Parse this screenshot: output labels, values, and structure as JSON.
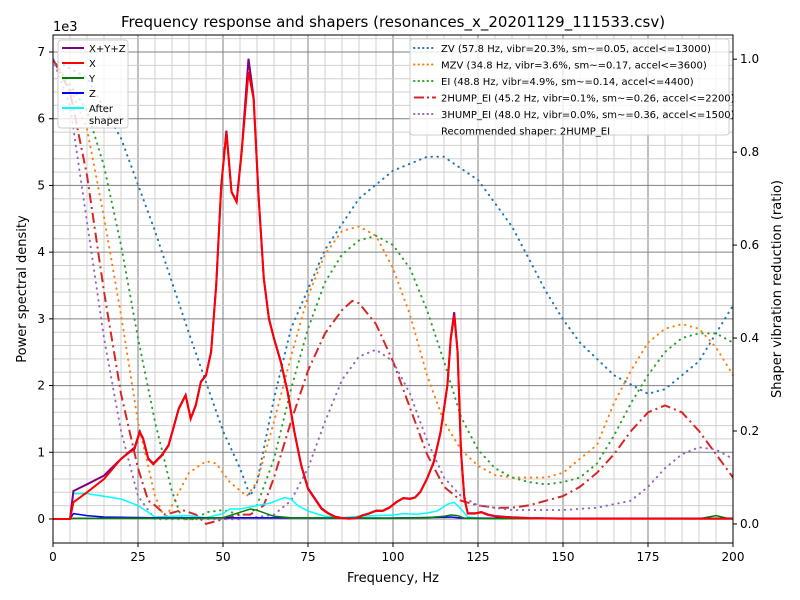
{
  "chart_data": {
    "type": "line",
    "title": "Frequency response and shapers (resonances_x_20201129_111533.csv)",
    "xlabel": "Frequency, Hz",
    "ylabel": "Power spectral density",
    "y2label": "Shaper vibration reduction (ratio)",
    "y_offset_label": "1e3",
    "xlim": [
      0,
      200
    ],
    "ylim": [
      -360,
      7255
    ],
    "y2lim": [
      -0.041,
      1.052
    ],
    "xticks": [
      0,
      25,
      50,
      75,
      100,
      125,
      150,
      175,
      200
    ],
    "yticks": [
      0,
      1,
      2,
      3,
      4,
      5,
      6,
      7
    ],
    "y2ticks": [
      "0.0",
      "0.2",
      "0.4",
      "0.6",
      "0.8",
      "1.0"
    ],
    "grid": true,
    "psd_legend_placement": "upper-left",
    "shaper_legend_placement": "upper-right",
    "psd_series": [
      {
        "name": "X+Y+Z",
        "color": "#800080",
        "x": [
          0,
          5,
          6,
          10,
          15,
          20,
          22.5,
          24,
          25.5,
          26.5,
          28,
          29.5,
          32,
          34,
          37,
          39,
          40.5,
          42,
          43.5,
          45,
          46.5,
          48,
          49.5,
          51,
          52.5,
          54,
          55.5,
          57.5,
          59,
          60.5,
          62,
          63.5,
          65,
          67,
          69,
          71,
          73,
          75,
          77,
          79,
          81,
          83,
          85,
          87,
          89,
          91,
          93,
          95,
          97,
          99,
          101,
          103,
          105,
          106.5,
          108,
          110,
          112,
          114,
          116,
          117,
          118,
          119,
          120,
          121,
          122,
          124,
          126,
          128,
          130,
          135,
          140,
          150,
          200
        ],
        "y": [
          0,
          0,
          420,
          520,
          650,
          900,
          1010,
          1070,
          1310,
          1210,
          910,
          830,
          960,
          1110,
          1660,
          1860,
          1510,
          1710,
          2060,
          2160,
          2510,
          3510,
          5010,
          5820,
          4910,
          4760,
          5520,
          6900,
          6320,
          4810,
          3610,
          3010,
          2710,
          2360,
          1910,
          1310,
          810,
          460,
          310,
          160,
          85,
          35,
          15,
          8,
          12,
          55,
          85,
          125,
          125,
          175,
          255,
          315,
          305,
          325,
          405,
          605,
          860,
          1310,
          2010,
          2720,
          3100,
          2510,
          1010,
          310,
          85,
          85,
          105,
          65,
          45,
          25,
          15,
          8,
          8
        ]
      },
      {
        "name": "X",
        "color": "#ff0000",
        "x": [
          0,
          5,
          6,
          10,
          15,
          20,
          22.5,
          24,
          25.5,
          26.5,
          28,
          29.5,
          32,
          34,
          37,
          39,
          40.5,
          42,
          43.5,
          45,
          46.5,
          48,
          49.5,
          51,
          52.5,
          54,
          55.5,
          57.5,
          59,
          60.5,
          62,
          63.5,
          65,
          67,
          69,
          71,
          73,
          75,
          77,
          79,
          81,
          83,
          85,
          87,
          89,
          91,
          93,
          95,
          97,
          99,
          101,
          103,
          105,
          106.5,
          108,
          110,
          112,
          114,
          116,
          117,
          118,
          119,
          120,
          121,
          122,
          124,
          126,
          128,
          130,
          135,
          140,
          150,
          200
        ],
        "y": [
          0,
          0,
          250,
          400,
          600,
          900,
          1000,
          1050,
          1300,
          1200,
          900,
          820,
          950,
          1100,
          1650,
          1850,
          1500,
          1700,
          2050,
          2150,
          2500,
          3500,
          5000,
          5800,
          4900,
          4750,
          5500,
          6700,
          6300,
          4800,
          3600,
          3000,
          2700,
          2350,
          1900,
          1300,
          800,
          450,
          300,
          150,
          80,
          30,
          10,
          5,
          10,
          50,
          80,
          120,
          120,
          170,
          250,
          310,
          300,
          320,
          400,
          600,
          850,
          1300,
          2000,
          2700,
          3050,
          2500,
          1000,
          300,
          80,
          80,
          100,
          60,
          40,
          20,
          10,
          5,
          5
        ]
      },
      {
        "name": "Y",
        "color": "#008000",
        "x": [
          0,
          5,
          6,
          20,
          40,
          50,
          55,
          58,
          60,
          65,
          70,
          100,
          110,
          115,
          117,
          119,
          121,
          130,
          190,
          195,
          198,
          200
        ],
        "y": [
          0,
          0,
          10,
          10,
          10,
          20,
          100,
          150,
          130,
          40,
          20,
          10,
          20,
          40,
          60,
          50,
          10,
          5,
          5,
          50,
          15,
          10
        ]
      },
      {
        "name": "Z",
        "color": "#0000ff",
        "x": [
          0,
          5,
          6,
          10,
          15,
          20,
          30,
          50,
          80,
          100,
          115,
          117,
          120,
          130,
          200
        ],
        "y": [
          0,
          0,
          80,
          50,
          30,
          25,
          20,
          20,
          15,
          15,
          25,
          30,
          15,
          10,
          10
        ]
      },
      {
        "name": "After\nshaper",
        "color": "#00ffff",
        "x": [
          0,
          5,
          6,
          10,
          15,
          20,
          25,
          28,
          30,
          35,
          40,
          45,
          50,
          52,
          55,
          60,
          64,
          68,
          70,
          72,
          75,
          80,
          85,
          90,
          95,
          100,
          103,
          107,
          110,
          113,
          116,
          118,
          120,
          122,
          125,
          200
        ],
        "y": [
          0,
          0,
          380,
          380,
          340,
          300,
          200,
          100,
          30,
          40,
          50,
          20,
          80,
          150,
          150,
          200,
          240,
          320,
          300,
          200,
          120,
          40,
          20,
          40,
          50,
          60,
          80,
          70,
          90,
          120,
          220,
          250,
          150,
          30,
          10,
          0
        ]
      }
    ],
    "shaper_series": [
      {
        "name": "ZV (57.8 Hz, vibr=20.3%, sm~=0.05, accel<=13000)",
        "color": "#1f77b4",
        "style": "dotted",
        "x": [
          0,
          10,
          20,
          30,
          40,
          50,
          55,
          58,
          60,
          65,
          70,
          80,
          90,
          100,
          110,
          115,
          125,
          135,
          145,
          150,
          155,
          165,
          175,
          180,
          190,
          200
        ],
        "y": [
          1.0,
          0.96,
          0.83,
          0.63,
          0.41,
          0.2,
          0.12,
          0.06,
          0.09,
          0.27,
          0.42,
          0.59,
          0.7,
          0.76,
          0.79,
          0.79,
          0.74,
          0.64,
          0.5,
          0.44,
          0.39,
          0.32,
          0.28,
          0.29,
          0.35,
          0.47
        ]
      },
      {
        "name": "MZV (34.8 Hz, vibr=3.6%, sm~=0.17, accel<=3600)",
        "color": "#ff7f0e",
        "style": "dotted",
        "x": [
          0,
          5,
          10,
          15,
          20,
          25,
          30,
          33,
          35,
          40,
          45,
          48,
          52,
          57,
          60,
          65,
          70,
          75,
          80,
          85,
          90,
          95,
          100,
          105,
          110,
          115,
          120,
          125,
          130,
          135,
          145,
          150,
          160,
          165,
          170,
          175,
          180,
          185,
          190,
          195,
          200
        ],
        "y": [
          1.0,
          0.94,
          0.85,
          0.66,
          0.45,
          0.22,
          0.06,
          0.01,
          0.04,
          0.11,
          0.135,
          0.13,
          0.09,
          0.06,
          0.09,
          0.22,
          0.36,
          0.49,
          0.58,
          0.63,
          0.64,
          0.62,
          0.55,
          0.45,
          0.32,
          0.22,
          0.16,
          0.125,
          0.105,
          0.1,
          0.1,
          0.11,
          0.17,
          0.26,
          0.33,
          0.39,
          0.42,
          0.43,
          0.42,
          0.38,
          0.32
        ]
      },
      {
        "name": "EI (48.8 Hz, vibr=4.9%, sm~=0.14, accel<=4400)",
        "color": "#2ca02c",
        "style": "dotted",
        "x": [
          0,
          10,
          15,
          20,
          25,
          30,
          35,
          38,
          42,
          45,
          50,
          55,
          58,
          60,
          65,
          70,
          75,
          80,
          85,
          90,
          95,
          100,
          105,
          110,
          115,
          120,
          125,
          130,
          135,
          140,
          145,
          150,
          155,
          160,
          165,
          170,
          175,
          180,
          185,
          190,
          195,
          200
        ],
        "y": [
          1.0,
          0.89,
          0.77,
          0.6,
          0.4,
          0.22,
          0.07,
          0.01,
          0.01,
          0.025,
          0.03,
          0.02,
          0.02,
          0.04,
          0.14,
          0.29,
          0.42,
          0.52,
          0.58,
          0.61,
          0.62,
          0.6,
          0.55,
          0.46,
          0.35,
          0.23,
          0.16,
          0.12,
          0.1,
          0.09,
          0.085,
          0.09,
          0.1,
          0.13,
          0.19,
          0.26,
          0.32,
          0.37,
          0.4,
          0.41,
          0.41,
          0.39
        ]
      },
      {
        "name": "2HUMP_EI (45.2 Hz, vibr=0.1%, sm~=0.26, accel<=2200)",
        "color": "#d62728",
        "style": "dashdot",
        "x": [
          0,
          5,
          10,
          15,
          20,
          25,
          28,
          30,
          33,
          38,
          42,
          45,
          50,
          55,
          58,
          62,
          65,
          70,
          75,
          80,
          85,
          88,
          90,
          95,
          100,
          105,
          110,
          115,
          120,
          125,
          130,
          135,
          140,
          145,
          150,
          155,
          160,
          165,
          170,
          175,
          180,
          185,
          190,
          195,
          200
        ],
        "y": [
          1.0,
          0.93,
          0.75,
          0.5,
          0.28,
          0.12,
          0.05,
          0.04,
          0.02,
          0.03,
          0.02,
          0.0,
          0.01,
          0.02,
          0.02,
          0.04,
          0.1,
          0.22,
          0.33,
          0.41,
          0.46,
          0.48,
          0.475,
          0.43,
          0.35,
          0.25,
          0.15,
          0.08,
          0.05,
          0.04,
          0.035,
          0.035,
          0.04,
          0.05,
          0.06,
          0.08,
          0.11,
          0.15,
          0.2,
          0.24,
          0.255,
          0.24,
          0.2,
          0.15,
          0.1
        ]
      },
      {
        "name": "3HUMP_EI (48.0 Hz, vibr=0.0%, sm~=0.36, accel<=1500)",
        "color": "#9467bd",
        "style": "dotted",
        "x": [
          0,
          5,
          10,
          15,
          20,
          25,
          30,
          35,
          45,
          55,
          60,
          65,
          70,
          75,
          80,
          85,
          90,
          95,
          100,
          105,
          110,
          115,
          120,
          125,
          135,
          150,
          160,
          170,
          175,
          180,
          185,
          190,
          195,
          200
        ],
        "y": [
          1.0,
          0.9,
          0.65,
          0.4,
          0.2,
          0.06,
          0.01,
          0.01,
          0.01,
          0.01,
          0.015,
          0.02,
          0.05,
          0.12,
          0.22,
          0.31,
          0.36,
          0.375,
          0.35,
          0.28,
          0.18,
          0.1,
          0.06,
          0.04,
          0.03,
          0.03,
          0.035,
          0.05,
          0.08,
          0.12,
          0.15,
          0.165,
          0.16,
          0.14
        ]
      }
    ],
    "recommendation": "Recommended shaper: 2HUMP_EI"
  }
}
